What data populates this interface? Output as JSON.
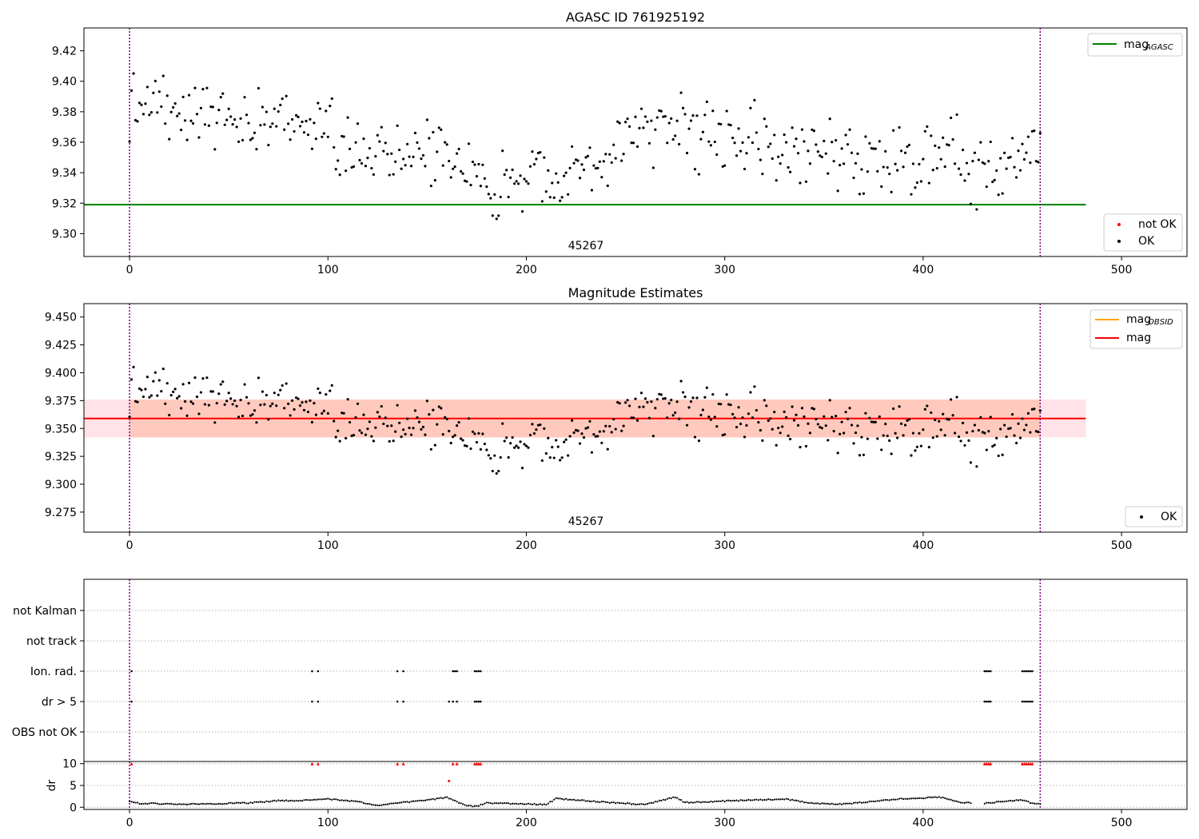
{
  "chart_data": [
    {
      "type": "scatter",
      "title": "AGASC ID 761925192",
      "annotation": "45267",
      "xlim": [
        -23,
        533
      ],
      "ylim": [
        9.285,
        9.435
      ],
      "xticks": [
        0,
        100,
        200,
        300,
        400,
        500
      ],
      "yticks": [
        9.3,
        9.32,
        9.34,
        9.36,
        9.38,
        9.4,
        9.42
      ],
      "ytick_labels": [
        "9.30",
        "9.32",
        "9.34",
        "9.36",
        "9.38",
        "9.40",
        "9.42"
      ],
      "mag_agasc": 9.319,
      "mag_agasc_xrange": [
        -23,
        482
      ],
      "obs_boundaries": [
        0,
        459
      ],
      "legend_lines": [
        {
          "label": "mag",
          "sub": "AGASC",
          "color": "#008000"
        }
      ],
      "legend_points": [
        {
          "label": "not OK",
          "color": "#ff0000"
        },
        {
          "label": "OK",
          "color": "#000000"
        }
      ]
    },
    {
      "type": "scatter",
      "title": "Magnitude Estimates",
      "annotation": "45267",
      "xlim": [
        -23,
        533
      ],
      "ylim": [
        9.257,
        9.462
      ],
      "xticks": [
        0,
        100,
        200,
        300,
        400,
        500
      ],
      "yticks": [
        9.275,
        9.3,
        9.325,
        9.35,
        9.375,
        9.4,
        9.425,
        9.45
      ],
      "ytick_labels": [
        "9.275",
        "9.300",
        "9.325",
        "9.350",
        "9.375",
        "9.400",
        "9.425",
        "9.450"
      ],
      "mag": 9.359,
      "mag_band": [
        9.342,
        9.376
      ],
      "mag_xrange": [
        -23,
        482
      ],
      "obsid_band_xrange": [
        0,
        459
      ],
      "obs_boundaries": [
        0,
        459
      ],
      "legend_lines": [
        {
          "label": "mag",
          "sub": "OBSID",
          "color": "#ffa500"
        },
        {
          "label": "mag",
          "sub": "",
          "color": "#ff0000"
        }
      ],
      "legend_points": [
        {
          "label": "OK",
          "color": "#000000"
        }
      ]
    },
    {
      "type": "scatter",
      "title": "",
      "xlim": [
        -23,
        533
      ],
      "xticks": [
        0,
        100,
        200,
        300,
        400,
        500
      ],
      "flag_labels": [
        "not Kalman",
        "not track",
        "Ion. rad.",
        "dr > 5",
        "OBS not OK"
      ],
      "flags": {
        "Ion. rad.": [
          1,
          92,
          95,
          135,
          138,
          163,
          164,
          165,
          174,
          175,
          176,
          177,
          431,
          432,
          433,
          434,
          450,
          451,
          452,
          453,
          454,
          455
        ],
        "dr > 5": [
          1,
          92,
          95,
          135,
          138,
          161,
          163,
          165,
          174,
          175,
          176,
          177,
          431,
          432,
          433,
          434,
          450,
          451,
          452,
          453,
          454,
          455
        ]
      },
      "dr_ylabel": "dr",
      "dr_ylim": [
        -0.5,
        10.5
      ],
      "dr_yticks": [
        0,
        5,
        10
      ],
      "dr_ytick_labels": [
        "0",
        "5",
        "10"
      ],
      "dr_clipped_markers": [
        1,
        92,
        95,
        135,
        138,
        163,
        165,
        174,
        175,
        176,
        177,
        431,
        432,
        433,
        434,
        450,
        451,
        452,
        453,
        454,
        455
      ],
      "dr_outlier": {
        "x": 161,
        "y": 6
      }
    }
  ]
}
